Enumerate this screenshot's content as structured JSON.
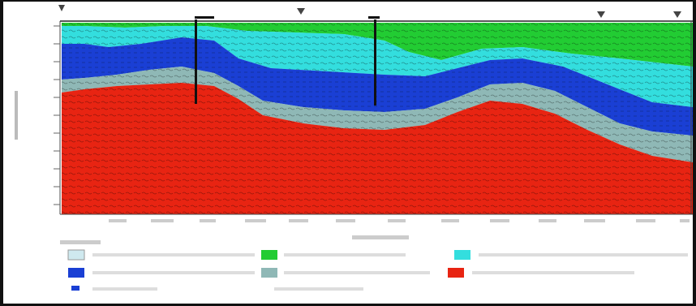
{
  "colors": {
    "top_soil": "#22cc33",
    "cyan_layer": "#33dede",
    "blue_layer": "#1a3fd4",
    "grey_layer": "#8fb8b6",
    "bedrock": "#e82412",
    "frame_bg": "#111111"
  },
  "legend": {
    "title": "",
    "items": [
      {
        "name": "legend-item-pale",
        "label": "",
        "color": "#cfe9ef"
      },
      {
        "name": "legend-item-green",
        "label": "",
        "color": "#22cc33"
      },
      {
        "name": "legend-item-cyan",
        "label": "",
        "color": "#33dede"
      },
      {
        "name": "legend-item-blue",
        "label": "",
        "color": "#1a3fd4"
      },
      {
        "name": "legend-item-grey",
        "label": "",
        "color": "#8fb8b6"
      },
      {
        "name": "legend-item-red",
        "label": "",
        "color": "#e82412"
      },
      {
        "name": "legend-item-line",
        "label": "",
        "color": "#1a3fd4"
      }
    ]
  },
  "axis": {
    "x_title": "",
    "y_title": ""
  },
  "boreholes": [
    {
      "name": "borehole-1"
    },
    {
      "name": "borehole-2"
    }
  ],
  "markers": [
    {
      "name": "surface-marker-1"
    },
    {
      "name": "surface-marker-2"
    },
    {
      "name": "surface-marker-3"
    },
    {
      "name": "surface-marker-4"
    }
  ]
}
